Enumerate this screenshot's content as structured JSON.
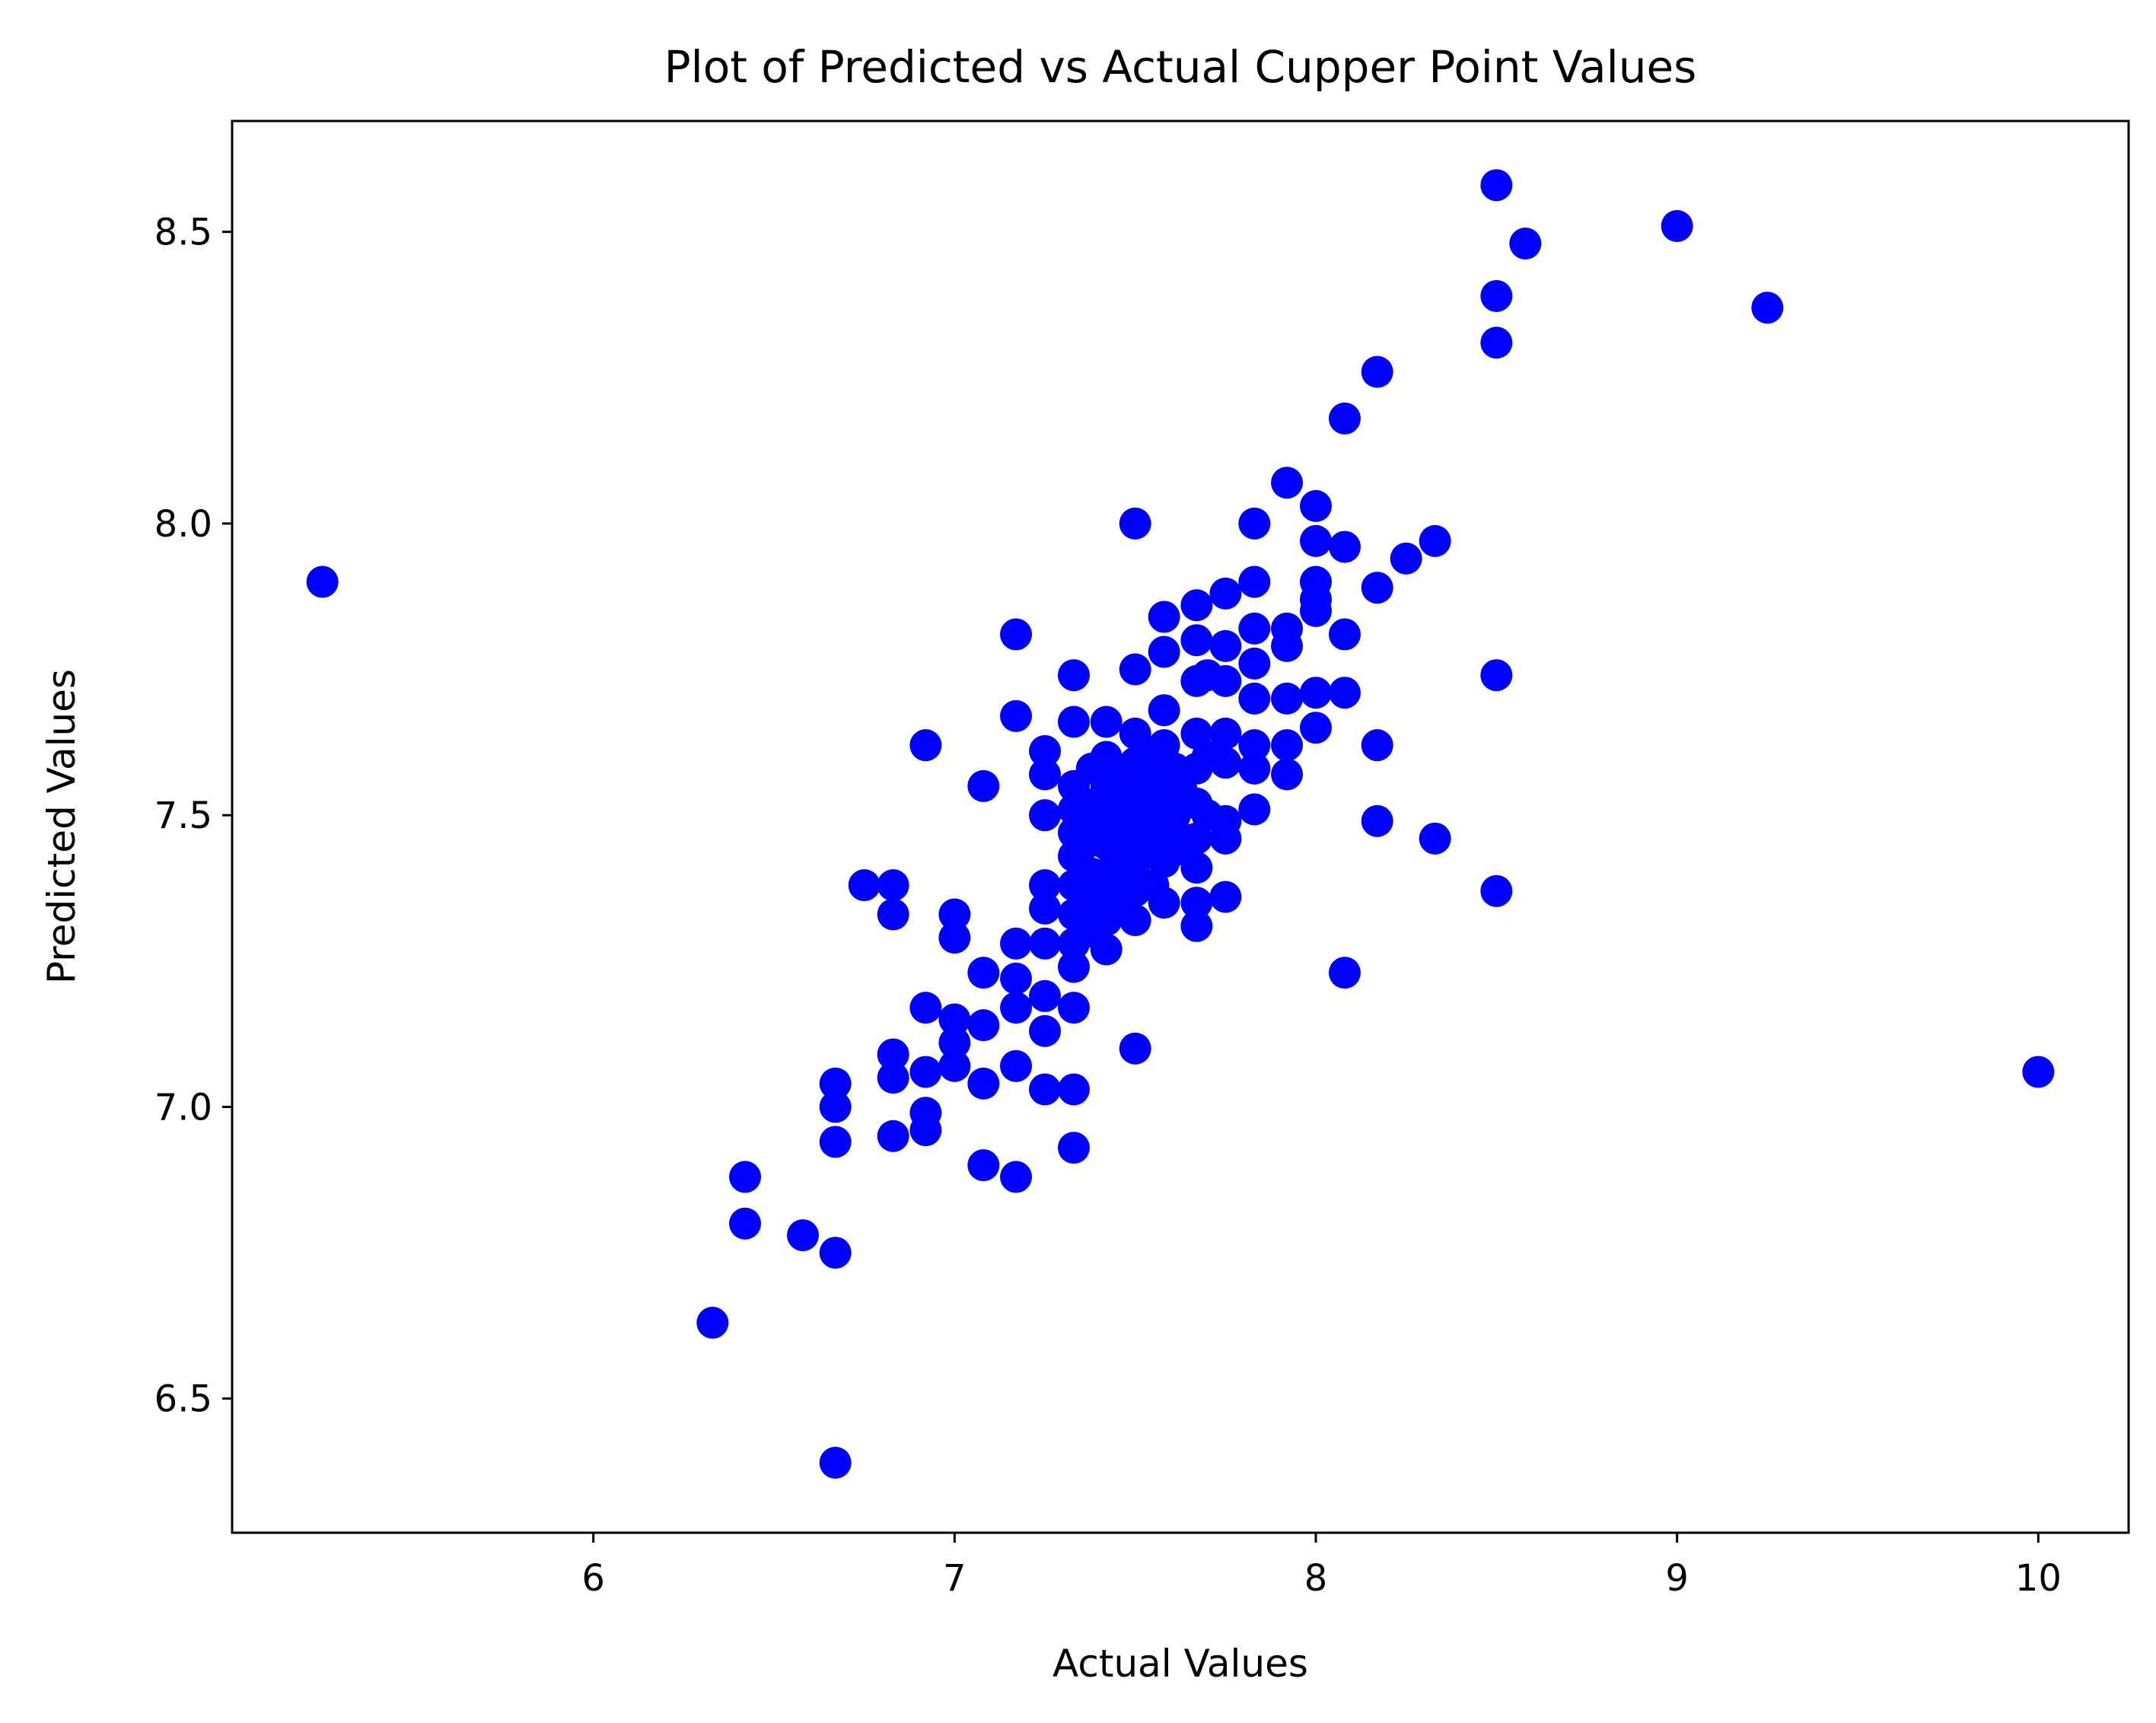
{
  "chart_data": {
    "type": "scatter",
    "title": "Plot of Predicted vs Actual Cupper Point Values",
    "xlabel": "Actual Values",
    "ylabel": "Predicted Values",
    "xlim": [
      5.0,
      10.25
    ],
    "ylim": [
      6.27,
      8.69
    ],
    "xticks": [
      6,
      7,
      8,
      9,
      10
    ],
    "yticks": [
      6.5,
      7.0,
      7.5,
      8.0,
      8.5
    ],
    "xtick_labels": [
      "6",
      "7",
      "8",
      "9",
      "10"
    ],
    "ytick_labels": [
      "6.5",
      "7.0",
      "7.5",
      "8.0",
      "8.5"
    ],
    "grid": false,
    "marker_color": "#0000ff",
    "series": [
      {
        "points": [
          [
            5.25,
            7.9
          ],
          [
            6.33,
            6.63
          ],
          [
            6.42,
            6.88
          ],
          [
            6.42,
            6.8
          ],
          [
            6.58,
            6.78
          ],
          [
            6.67,
            6.75
          ],
          [
            6.67,
            6.39
          ],
          [
            6.67,
            7.04
          ],
          [
            6.67,
            7.0
          ],
          [
            6.67,
            6.94
          ],
          [
            6.75,
            7.38
          ],
          [
            6.83,
            7.38
          ],
          [
            6.83,
            7.33
          ],
          [
            6.83,
            7.09
          ],
          [
            6.83,
            7.05
          ],
          [
            6.83,
            6.95
          ],
          [
            6.92,
            7.62
          ],
          [
            6.92,
            7.17
          ],
          [
            6.92,
            7.06
          ],
          [
            6.92,
            6.99
          ],
          [
            6.92,
            6.96
          ],
          [
            7.0,
            7.33
          ],
          [
            7.0,
            7.29
          ],
          [
            7.0,
            7.15
          ],
          [
            7.0,
            7.11
          ],
          [
            7.0,
            7.07
          ],
          [
            7.08,
            7.55
          ],
          [
            7.08,
            7.23
          ],
          [
            7.08,
            7.14
          ],
          [
            7.08,
            7.04
          ],
          [
            7.08,
            6.9
          ],
          [
            7.17,
            7.81
          ],
          [
            7.17,
            7.67
          ],
          [
            7.17,
            7.28
          ],
          [
            7.17,
            7.22
          ],
          [
            7.17,
            7.17
          ],
          [
            7.17,
            7.07
          ],
          [
            7.17,
            6.88
          ],
          [
            7.25,
            7.61
          ],
          [
            7.25,
            7.57
          ],
          [
            7.25,
            7.5
          ],
          [
            7.25,
            7.38
          ],
          [
            7.25,
            7.34
          ],
          [
            7.25,
            7.28
          ],
          [
            7.25,
            7.19
          ],
          [
            7.25,
            7.13
          ],
          [
            7.25,
            7.03
          ],
          [
            7.33,
            7.74
          ],
          [
            7.33,
            7.66
          ],
          [
            7.33,
            7.55
          ],
          [
            7.33,
            7.51
          ],
          [
            7.33,
            7.47
          ],
          [
            7.33,
            7.43
          ],
          [
            7.33,
            7.38
          ],
          [
            7.33,
            7.33
          ],
          [
            7.33,
            7.28
          ],
          [
            7.33,
            7.24
          ],
          [
            7.33,
            7.17
          ],
          [
            7.33,
            7.03
          ],
          [
            7.33,
            6.93
          ],
          [
            7.36,
            7.52
          ],
          [
            7.36,
            7.45
          ],
          [
            7.36,
            7.35
          ],
          [
            7.38,
            7.58
          ],
          [
            7.38,
            7.48
          ],
          [
            7.38,
            7.4
          ],
          [
            7.38,
            7.3
          ],
          [
            7.42,
            7.66
          ],
          [
            7.42,
            7.6
          ],
          [
            7.42,
            7.55
          ],
          [
            7.42,
            7.5
          ],
          [
            7.42,
            7.45
          ],
          [
            7.42,
            7.4
          ],
          [
            7.42,
            7.36
          ],
          [
            7.42,
            7.32
          ],
          [
            7.42,
            7.27
          ],
          [
            7.45,
            7.56
          ],
          [
            7.45,
            7.47
          ],
          [
            7.45,
            7.38
          ],
          [
            7.47,
            7.52
          ],
          [
            7.47,
            7.43
          ],
          [
            7.47,
            7.35
          ],
          [
            7.5,
            8.0
          ],
          [
            7.5,
            7.75
          ],
          [
            7.5,
            7.64
          ],
          [
            7.5,
            7.59
          ],
          [
            7.5,
            7.54
          ],
          [
            7.5,
            7.5
          ],
          [
            7.5,
            7.46
          ],
          [
            7.5,
            7.42
          ],
          [
            7.5,
            7.37
          ],
          [
            7.5,
            7.32
          ],
          [
            7.5,
            7.1
          ],
          [
            7.53,
            7.6
          ],
          [
            7.53,
            7.51
          ],
          [
            7.53,
            7.44
          ],
          [
            7.55,
            7.56
          ],
          [
            7.55,
            7.48
          ],
          [
            7.55,
            7.38
          ],
          [
            7.58,
            7.84
          ],
          [
            7.58,
            7.78
          ],
          [
            7.58,
            7.68
          ],
          [
            7.58,
            7.62
          ],
          [
            7.58,
            7.56
          ],
          [
            7.58,
            7.52
          ],
          [
            7.58,
            7.47
          ],
          [
            7.58,
            7.42
          ],
          [
            7.58,
            7.35
          ],
          [
            7.61,
            7.58
          ],
          [
            7.61,
            7.5
          ],
          [
            7.61,
            7.44
          ],
          [
            7.63,
            7.54
          ],
          [
            7.63,
            7.46
          ],
          [
            7.67,
            7.86
          ],
          [
            7.67,
            7.8
          ],
          [
            7.67,
            7.73
          ],
          [
            7.67,
            7.64
          ],
          [
            7.67,
            7.58
          ],
          [
            7.67,
            7.52
          ],
          [
            7.67,
            7.46
          ],
          [
            7.67,
            7.41
          ],
          [
            7.67,
            7.35
          ],
          [
            7.67,
            7.31
          ],
          [
            7.7,
            7.74
          ],
          [
            7.7,
            7.6
          ],
          [
            7.7,
            7.5
          ],
          [
            7.75,
            7.88
          ],
          [
            7.75,
            7.79
          ],
          [
            7.75,
            7.73
          ],
          [
            7.75,
            7.64
          ],
          [
            7.75,
            7.59
          ],
          [
            7.75,
            7.49
          ],
          [
            7.75,
            7.46
          ],
          [
            7.75,
            7.36
          ],
          [
            7.83,
            8.0
          ],
          [
            7.83,
            7.9
          ],
          [
            7.83,
            7.82
          ],
          [
            7.83,
            7.76
          ],
          [
            7.83,
            7.7
          ],
          [
            7.83,
            7.62
          ],
          [
            7.83,
            7.58
          ],
          [
            7.83,
            7.51
          ],
          [
            7.92,
            8.07
          ],
          [
            7.92,
            7.82
          ],
          [
            7.92,
            7.79
          ],
          [
            7.92,
            7.7
          ],
          [
            7.92,
            7.62
          ],
          [
            7.92,
            7.57
          ],
          [
            8.0,
            8.03
          ],
          [
            8.0,
            7.97
          ],
          [
            8.0,
            7.9
          ],
          [
            8.0,
            7.87
          ],
          [
            8.0,
            7.85
          ],
          [
            8.0,
            7.71
          ],
          [
            8.0,
            7.65
          ],
          [
            8.08,
            8.18
          ],
          [
            8.08,
            7.96
          ],
          [
            8.08,
            7.81
          ],
          [
            8.08,
            7.71
          ],
          [
            8.08,
            7.23
          ],
          [
            8.17,
            8.26
          ],
          [
            8.17,
            7.89
          ],
          [
            8.17,
            7.62
          ],
          [
            8.17,
            7.49
          ],
          [
            8.25,
            7.94
          ],
          [
            8.33,
            7.97
          ],
          [
            8.33,
            7.46
          ],
          [
            8.5,
            8.58
          ],
          [
            8.5,
            8.39
          ],
          [
            8.5,
            8.31
          ],
          [
            8.5,
            7.74
          ],
          [
            8.5,
            7.37
          ],
          [
            8.58,
            8.48
          ],
          [
            9.0,
            8.51
          ],
          [
            9.25,
            8.37
          ],
          [
            10.0,
            7.06
          ]
        ]
      }
    ]
  }
}
